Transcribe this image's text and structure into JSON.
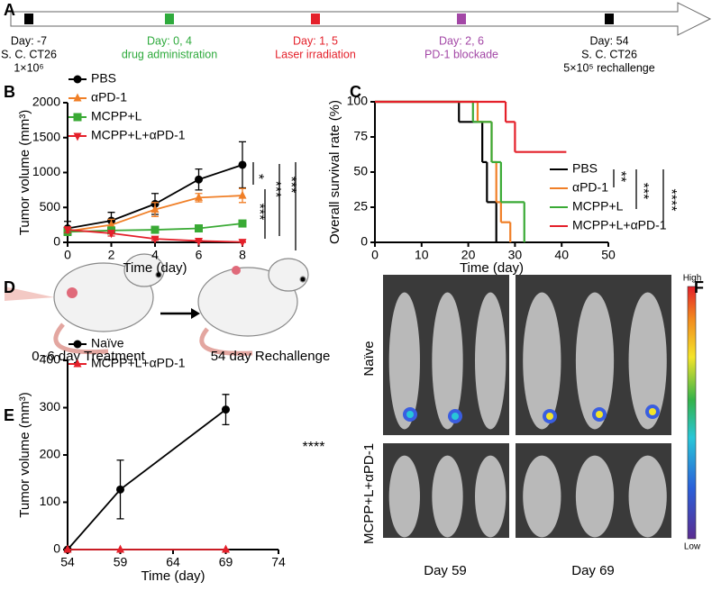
{
  "panel_labels": [
    "A",
    "B",
    "C",
    "D",
    "E",
    "F"
  ],
  "timeline": {
    "events": [
      {
        "color": "#000000",
        "lines": [
          "Day: -7",
          "S. C. CT26",
          "1×10⁶"
        ]
      },
      {
        "color": "#2eaa3c",
        "lines": [
          "Day: 0, 4",
          "drug administration"
        ]
      },
      {
        "color": "#e4202a",
        "lines": [
          "Day: 1, 5",
          "Laser irradiation"
        ]
      },
      {
        "color": "#a347a6",
        "lines": [
          "Day: 2, 6",
          "PD-1 blockade"
        ]
      },
      {
        "color": "#000000",
        "lines": [
          "Day: 54",
          "S. C. CT26",
          "5×10⁵ rechallenge"
        ]
      }
    ]
  },
  "diagram": {
    "labels": [
      "0~6 day Treatment",
      "54 day Rechallenge"
    ]
  },
  "imaging": {
    "row_labels": [
      "Naïve",
      "MCPP+L+αPD-1"
    ],
    "column_labels": [
      "Day 59",
      "Day 69"
    ],
    "scale_labels": [
      "High",
      "Low"
    ]
  },
  "chart_data": [
    {
      "type": "line",
      "x_label": "Time (day)",
      "y_label": "Tumor volume (mm³)",
      "x": [
        0,
        2,
        4,
        6,
        8
      ],
      "xlim": [
        0,
        8
      ],
      "xticks": [
        0,
        2,
        4,
        6,
        8
      ],
      "ylim": [
        0,
        2000
      ],
      "yticks": [
        0,
        500,
        1000,
        1500,
        2000
      ],
      "series": [
        {
          "name": "PBS",
          "color": "#000000",
          "marker": "circle",
          "values": [
            200,
            310,
            550,
            900,
            1110
          ],
          "errors": [
            100,
            120,
            150,
            150,
            330
          ]
        },
        {
          "name": "αPD-1",
          "color": "#f07f27",
          "marker": "triangle",
          "values": [
            160,
            250,
            470,
            640,
            670
          ],
          "errors": [
            60,
            80,
            100,
            60,
            100
          ]
        },
        {
          "name": "MCPP+L",
          "color": "#3aaa35",
          "marker": "square",
          "values": [
            150,
            170,
            180,
            200,
            270
          ],
          "errors": [
            50,
            40,
            30,
            30,
            40
          ]
        },
        {
          "name": "MCPP+L+αPD-1",
          "color": "#e4202a",
          "marker": "triangle-down",
          "values": [
            180,
            130,
            50,
            20,
            5
          ],
          "errors": [
            40,
            40,
            20,
            10,
            5
          ]
        }
      ],
      "annotations": [
        "*",
        "***",
        "***",
        "***"
      ]
    },
    {
      "type": "line",
      "step": true,
      "x_label": "Time (day)",
      "y_label": "Overall survival rate (%)",
      "xlim": [
        0,
        50
      ],
      "xticks": [
        0,
        10,
        20,
        30,
        40,
        50
      ],
      "ylim": [
        0,
        100
      ],
      "yticks": [
        0,
        25,
        50,
        75,
        100
      ],
      "series": [
        {
          "name": "PBS",
          "color": "#000000",
          "x": [
            0,
            18,
            23,
            24,
            26
          ],
          "values": [
            100,
            85.7,
            57.1,
            28.6,
            0
          ]
        },
        {
          "name": "αPD-1",
          "color": "#f07f27",
          "x": [
            0,
            22,
            25,
            26,
            27,
            29
          ],
          "values": [
            100,
            85.7,
            57.1,
            28.6,
            14.3,
            0
          ]
        },
        {
          "name": "MCPP+L",
          "color": "#3aaa35",
          "x": [
            0,
            21,
            25,
            27,
            32
          ],
          "values": [
            100,
            85.7,
            57.1,
            28.6,
            0
          ]
        },
        {
          "name": "MCPP+L+αPD-1",
          "color": "#e4202a",
          "x": [
            0,
            28,
            30,
            41
          ],
          "values": [
            100,
            85.7,
            64.3,
            64.3
          ]
        }
      ],
      "annotations": [
        "**",
        "***",
        "****"
      ]
    },
    {
      "type": "line",
      "x_label": "Time (day)",
      "y_label": "Tumor volume (mm³)",
      "x": [
        54,
        59,
        69
      ],
      "xlim": [
        54,
        74
      ],
      "xticks": [
        54,
        59,
        64,
        69,
        74
      ],
      "ylim": [
        0,
        400
      ],
      "yticks": [
        0,
        100,
        200,
        300,
        400
      ],
      "series": [
        {
          "name": "Naïve",
          "color": "#000000",
          "marker": "circle",
          "values": [
            0,
            127,
            296
          ],
          "errors": [
            0,
            62,
            32
          ]
        },
        {
          "name": "MCPP+L+αPD-1",
          "color": "#e4202a",
          "marker": "triangle",
          "values": [
            0,
            0,
            0
          ],
          "errors": [
            0,
            0,
            0
          ]
        }
      ],
      "annotations": [
        "****"
      ]
    }
  ]
}
